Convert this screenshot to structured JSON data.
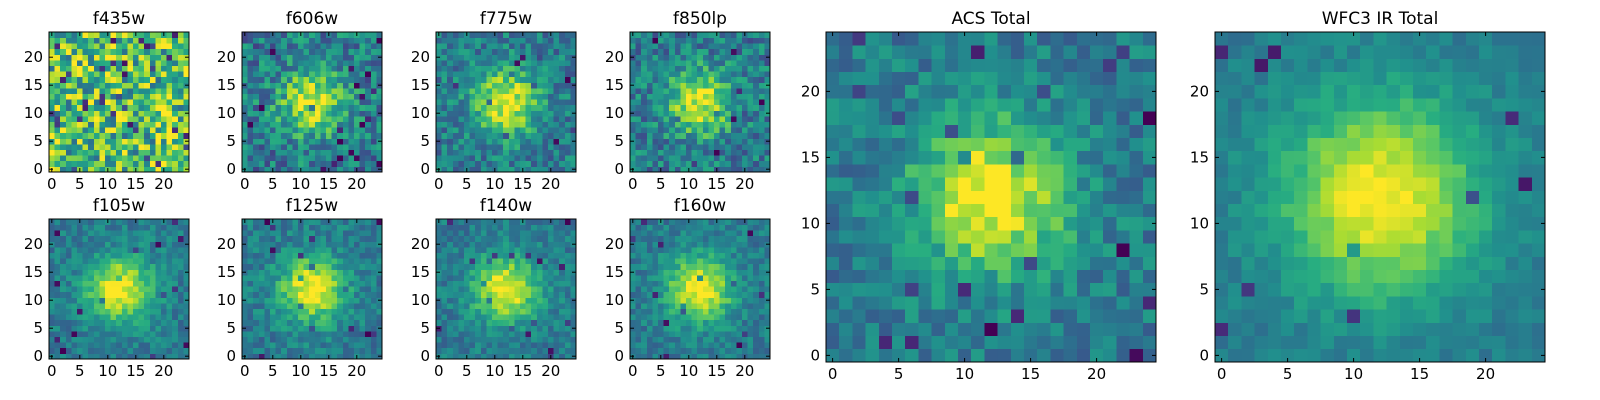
{
  "chart_data": [
    {
      "type": "heatmap",
      "title": "f435w",
      "pattern": "noise",
      "seed": 11,
      "xticks": [
        "0",
        "5",
        "10",
        "15",
        "20"
      ],
      "yticks": [
        "0",
        "5",
        "10",
        "15",
        "20"
      ],
      "grid_size": 25,
      "grid": false
    },
    {
      "type": "heatmap",
      "title": "f606w",
      "pattern": "source",
      "seed": 23,
      "peak": 0.85,
      "noise": 0.22,
      "xticks": [
        "0",
        "5",
        "10",
        "15",
        "20"
      ],
      "yticks": [
        "0",
        "5",
        "10",
        "15",
        "20"
      ],
      "grid_size": 25,
      "grid": false
    },
    {
      "type": "heatmap",
      "title": "f775w",
      "pattern": "source",
      "seed": 37,
      "peak": 0.95,
      "noise": 0.18,
      "xticks": [
        "0",
        "5",
        "10",
        "15",
        "20"
      ],
      "yticks": [
        "0",
        "5",
        "10",
        "15",
        "20"
      ],
      "grid_size": 25,
      "grid": false
    },
    {
      "type": "heatmap",
      "title": "f850lp",
      "pattern": "source",
      "seed": 41,
      "peak": 0.9,
      "noise": 0.2,
      "xticks": [
        "0",
        "5",
        "10",
        "15",
        "20"
      ],
      "yticks": [
        "0",
        "5",
        "10",
        "15",
        "20"
      ],
      "grid_size": 25,
      "grid": false
    },
    {
      "type": "heatmap",
      "title": "ACS Total",
      "pattern": "source",
      "seed": 53,
      "peak": 1.0,
      "noise": 0.14,
      "xticks": [
        "0",
        "5",
        "10",
        "15",
        "20"
      ],
      "yticks": [
        "0",
        "5",
        "10",
        "15",
        "20"
      ],
      "grid_size": 25,
      "grid": false
    },
    {
      "type": "heatmap",
      "title": "WFC3 IR Total",
      "pattern": "source",
      "seed": 67,
      "peak": 1.0,
      "noise": 0.07,
      "xticks": [
        "0",
        "5",
        "10",
        "15",
        "20"
      ],
      "yticks": [
        "0",
        "5",
        "10",
        "15",
        "20"
      ],
      "grid_size": 25,
      "grid": false
    },
    {
      "type": "heatmap",
      "title": "f105w",
      "pattern": "source",
      "seed": 71,
      "peak": 1.0,
      "noise": 0.12,
      "xticks": [
        "0",
        "5",
        "10",
        "15",
        "20"
      ],
      "yticks": [
        "0",
        "5",
        "10",
        "15",
        "20"
      ],
      "grid_size": 25,
      "grid": false
    },
    {
      "type": "heatmap",
      "title": "f125w",
      "pattern": "source",
      "seed": 83,
      "peak": 1.0,
      "noise": 0.13,
      "xticks": [
        "0",
        "5",
        "10",
        "15",
        "20"
      ],
      "yticks": [
        "0",
        "5",
        "10",
        "15",
        "20"
      ],
      "grid_size": 25,
      "grid": false
    },
    {
      "type": "heatmap",
      "title": "f140w",
      "pattern": "source",
      "seed": 97,
      "peak": 1.0,
      "noise": 0.12,
      "xticks": [
        "0",
        "5",
        "10",
        "15",
        "20"
      ],
      "yticks": [
        "0",
        "5",
        "10",
        "15",
        "20"
      ],
      "grid_size": 25,
      "grid": false
    },
    {
      "type": "heatmap",
      "title": "f160w",
      "pattern": "source",
      "seed": 101,
      "peak": 1.0,
      "noise": 0.12,
      "xticks": [
        "0",
        "5",
        "10",
        "15",
        "20"
      ],
      "yticks": [
        "0",
        "5",
        "10",
        "15",
        "20"
      ],
      "grid_size": 25,
      "grid": false
    }
  ],
  "colormap": "viridis"
}
